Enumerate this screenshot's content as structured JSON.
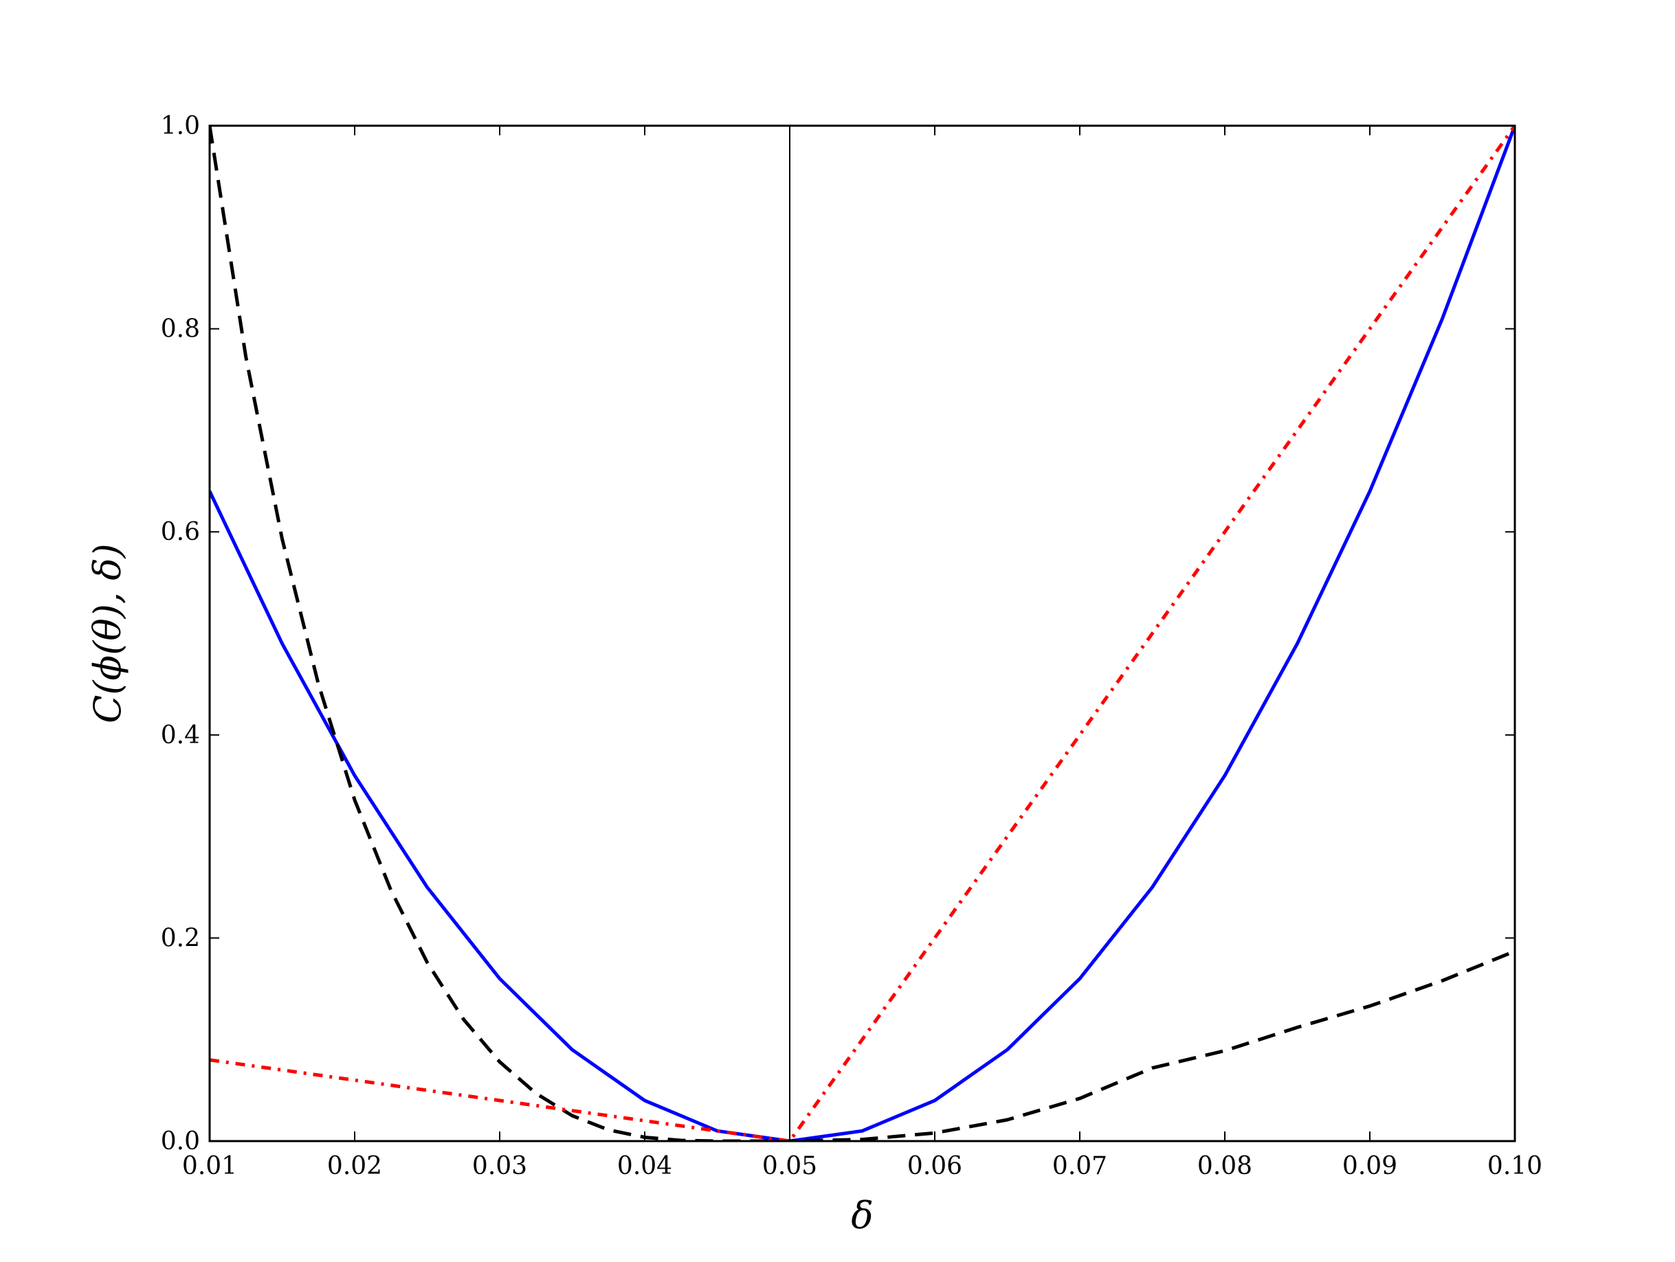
{
  "chart_data": {
    "type": "line",
    "xlabel": "δ",
    "ylabel": "C(ϕ(θ), δ)",
    "xlim": [
      0.01,
      0.1
    ],
    "ylim": [
      0.0,
      1.0
    ],
    "grid": false,
    "xticks": [
      0.01,
      0.02,
      0.03,
      0.04,
      0.05,
      0.06,
      0.07,
      0.08,
      0.09,
      0.1
    ],
    "xtick_labels": [
      "0.01",
      "0.02",
      "0.03",
      "0.04",
      "0.05",
      "0.06",
      "0.07",
      "0.08",
      "0.09",
      "0.10"
    ],
    "yticks": [
      0.0,
      0.2,
      0.4,
      0.6,
      0.8,
      1.0
    ],
    "ytick_labels": [
      "0.0",
      "0.2",
      "0.4",
      "0.6",
      "0.8",
      "1.0"
    ],
    "vertical_line": {
      "x": 0.05,
      "color": "#000000"
    },
    "series": [
      {
        "color": "#0000ff",
        "style": "solid",
        "x": [
          0.01,
          0.015,
          0.02,
          0.025,
          0.03,
          0.035,
          0.04,
          0.045,
          0.05,
          0.055,
          0.06,
          0.065,
          0.07,
          0.075,
          0.08,
          0.085,
          0.09,
          0.095,
          0.1
        ],
        "y": [
          0.64,
          0.49,
          0.36,
          0.25,
          0.16,
          0.09,
          0.04,
          0.01,
          0.0,
          0.01,
          0.04,
          0.09,
          0.16,
          0.25,
          0.36,
          0.49,
          0.64,
          0.81,
          1.0
        ]
      },
      {
        "color": "#000000",
        "style": "dashed",
        "x": [
          0.01,
          0.0125,
          0.015,
          0.0175,
          0.02,
          0.0225,
          0.025,
          0.0275,
          0.03,
          0.0325,
          0.035,
          0.0375,
          0.04,
          0.0425,
          0.045,
          0.0475,
          0.05,
          0.055,
          0.06,
          0.065,
          0.07,
          0.075,
          0.08,
          0.085,
          0.09,
          0.095,
          0.1
        ],
        "y": [
          1.0,
          0.772,
          0.593,
          0.45,
          0.336,
          0.247,
          0.176,
          0.12,
          0.078,
          0.047,
          0.025,
          0.011,
          0.0037,
          0.0007,
          0.0,
          0.0,
          0.0,
          0.0016,
          0.008,
          0.021,
          0.042,
          0.072,
          0.089,
          0.112,
          0.133,
          0.158,
          0.187
        ]
      },
      {
        "color": "#ff0000",
        "style": "dashdot",
        "x": [
          0.01,
          0.02,
          0.03,
          0.04,
          0.05,
          0.06,
          0.07,
          0.08,
          0.09,
          0.1
        ],
        "y": [
          0.08,
          0.06,
          0.04,
          0.02,
          0.0,
          0.2,
          0.4,
          0.6,
          0.8,
          1.0
        ]
      }
    ]
  }
}
